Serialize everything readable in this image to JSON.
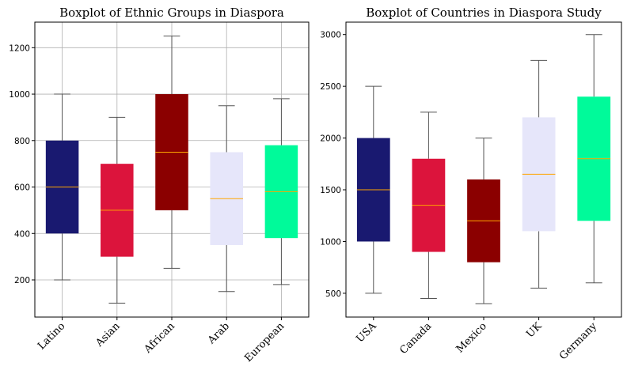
{
  "chart_data": [
    {
      "type": "boxplot",
      "title": "Boxplot of Ethnic Groups in Diaspora",
      "xlabel": "",
      "ylabel": "",
      "categories": [
        "Latino",
        "Asian",
        "African",
        "Arab",
        "European"
      ],
      "boxes": [
        {
          "min": 200,
          "q1": 400,
          "median": 600,
          "q3": 800,
          "max": 1000,
          "color": "#191970"
        },
        {
          "min": 100,
          "q1": 300,
          "median": 500,
          "q3": 700,
          "max": 900,
          "color": "#dc143c"
        },
        {
          "min": 250,
          "q1": 500,
          "median": 750,
          "q3": 1000,
          "max": 1250,
          "color": "#8b0000"
        },
        {
          "min": 150,
          "q1": 350,
          "median": 550,
          "q3": 750,
          "max": 950,
          "color": "#e6e6fa"
        },
        {
          "min": 180,
          "q1": 380,
          "median": 580,
          "q3": 780,
          "max": 980,
          "color": "#00fa9a"
        }
      ],
      "ylim": [
        40,
        1310
      ],
      "yticks": [
        200,
        400,
        600,
        800,
        1000,
        1200
      ],
      "grid": true
    },
    {
      "type": "boxplot",
      "title": "Boxplot of Countries in Diaspora Study",
      "xlabel": "",
      "ylabel": "",
      "categories": [
        "USA",
        "Canada",
        "Mexico",
        "UK",
        "Germany"
      ],
      "boxes": [
        {
          "min": 500,
          "q1": 1000,
          "median": 1500,
          "q3": 2000,
          "max": 2500,
          "color": "#191970"
        },
        {
          "min": 450,
          "q1": 900,
          "median": 1350,
          "q3": 1800,
          "max": 2250,
          "color": "#dc143c"
        },
        {
          "min": 400,
          "q1": 800,
          "median": 1200,
          "q3": 1600,
          "max": 2000,
          "color": "#8b0000"
        },
        {
          "min": 550,
          "q1": 1100,
          "median": 1650,
          "q3": 2200,
          "max": 2750,
          "color": "#e6e6fa"
        },
        {
          "min": 600,
          "q1": 1200,
          "median": 1800,
          "q3": 2400,
          "max": 3000,
          "color": "#00fa9a"
        }
      ],
      "ylim": [
        270,
        3120
      ],
      "yticks": [
        500,
        1000,
        1500,
        2000,
        2500,
        3000
      ],
      "grid": false
    }
  ]
}
